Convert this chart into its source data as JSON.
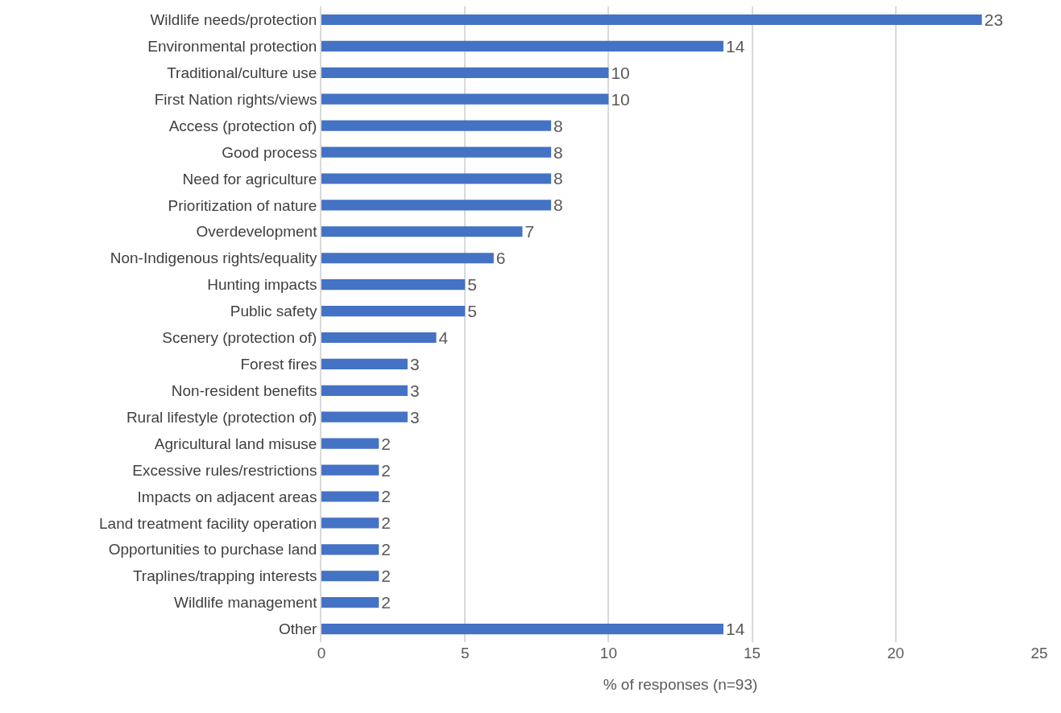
{
  "chart_data": {
    "type": "bar",
    "orientation": "horizontal",
    "xlabel": "% of responses (n=93)",
    "categories": [
      "Wildlife needs/protection",
      "Environmental protection",
      "Traditional/culture use",
      "First Nation rights/views",
      "Access (protection of)",
      "Good process",
      "Need for agriculture",
      "Prioritization of nature",
      "Overdevelopment",
      "Non-Indigenous rights/equality",
      "Hunting impacts",
      "Public safety",
      "Scenery (protection of)",
      "Forest fires",
      "Non-resident benefits",
      "Rural lifestyle (protection of)",
      "Agricultural land misuse",
      "Excessive rules/restrictions",
      "Impacts on adjacent areas",
      "Land treatment facility operation",
      "Opportunities to purchase land",
      "Traplines/trapping interests",
      "Wildlife management",
      "Other"
    ],
    "values": [
      23,
      14,
      10,
      10,
      8,
      8,
      8,
      8,
      7,
      6,
      5,
      5,
      4,
      3,
      3,
      3,
      2,
      2,
      2,
      2,
      2,
      2,
      2,
      14
    ],
    "color": "#4472c4",
    "xlim": [
      0,
      25
    ],
    "xticks": [
      0,
      5,
      10,
      15,
      20,
      25
    ],
    "grid": "x",
    "data_labels": true
  }
}
